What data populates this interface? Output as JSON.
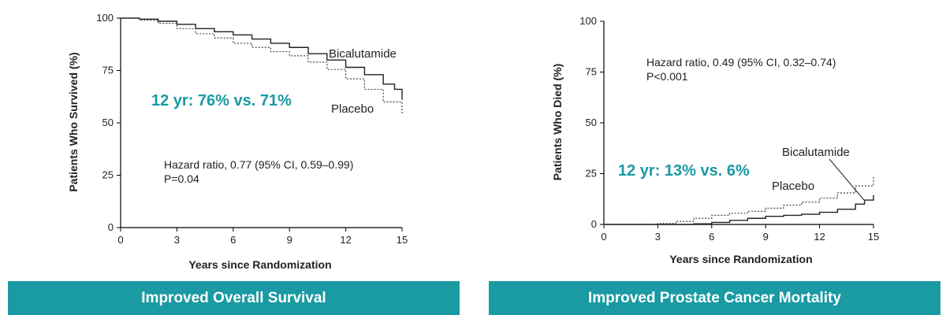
{
  "chart_data": [
    {
      "type": "line",
      "xlabel": "Years since Randomization",
      "ylabel": "Patients Who Survived (%)",
      "xlim": [
        0,
        15
      ],
      "ylim": [
        0,
        100
      ],
      "xticks": [
        0,
        3,
        6,
        9,
        12,
        15
      ],
      "yticks": [
        0,
        25,
        50,
        75,
        100
      ],
      "series": [
        {
          "name": "Bicalutamide",
          "style": "solid",
          "x": [
            0,
            1,
            2,
            3,
            4,
            5,
            6,
            7,
            8,
            9,
            10,
            11,
            12,
            13,
            14,
            14.6,
            15
          ],
          "values": [
            100,
            99.5,
            98.5,
            97,
            95,
            93.5,
            92,
            90,
            88,
            86,
            83,
            80,
            76.5,
            73,
            68.5,
            66,
            61
          ]
        },
        {
          "name": "Placebo",
          "style": "dotted",
          "x": [
            0,
            1,
            2,
            3,
            4,
            5,
            6,
            7,
            8,
            9,
            10,
            11,
            12,
            13,
            14,
            15
          ],
          "values": [
            100,
            99,
            97.5,
            95,
            92.5,
            90.5,
            88,
            86,
            84,
            82,
            79,
            75.5,
            71,
            66,
            60,
            54
          ]
        }
      ],
      "annotations": {
        "callout": "12 yr: 76% vs. 71%",
        "hazard_line1": "Hazard ratio, 0.77 (95% CI, 0.59–0.99)",
        "hazard_line2": "P=0.04"
      },
      "banner": "Improved Overall Survival"
    },
    {
      "type": "line",
      "xlabel": "Years since Randomization",
      "ylabel": "Patients Who Died (%)",
      "xlim": [
        0,
        15
      ],
      "ylim": [
        0,
        100
      ],
      "xticks": [
        0,
        3,
        6,
        9,
        12,
        15
      ],
      "yticks": [
        0,
        25,
        50,
        75,
        100
      ],
      "series": [
        {
          "name": "Bicalutamide",
          "style": "solid",
          "x": [
            0,
            4,
            5,
            6,
            7,
            8,
            9,
            10,
            11,
            12,
            13,
            14,
            14.5,
            15
          ],
          "values": [
            0,
            0,
            0.3,
            1,
            2,
            3,
            4,
            4.5,
            5,
            6,
            7.5,
            10,
            12,
            14.5
          ]
        },
        {
          "name": "Placebo",
          "style": "dotted",
          "x": [
            0,
            2,
            3,
            4,
            5,
            6,
            7,
            8,
            9,
            10,
            11,
            12,
            13,
            14,
            15
          ],
          "values": [
            0,
            0,
            0.5,
            1.5,
            3,
            4.5,
            5.5,
            6.5,
            8,
            9.5,
            11,
            13,
            15.5,
            19,
            24
          ]
        }
      ],
      "annotations": {
        "callout": "12 yr: 13% vs. 6%",
        "hazard_line1": "Hazard ratio, 0.49 (95% CI, 0.32–0.74)",
        "hazard_line2": "P<0.001"
      },
      "banner": "Improved Prostate Cancer Mortality"
    }
  ]
}
